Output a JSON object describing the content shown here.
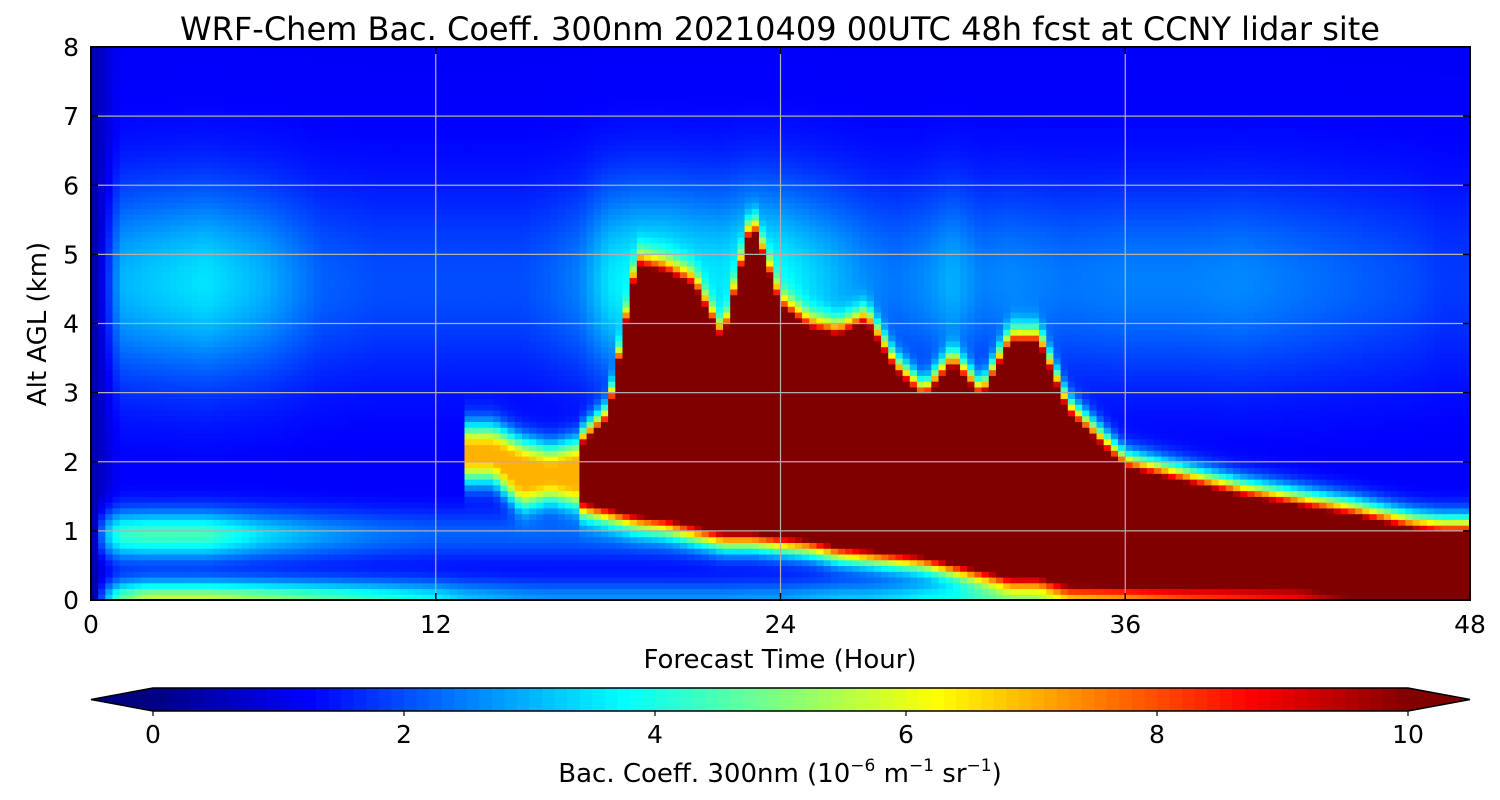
{
  "chart_data": {
    "type": "heatmap",
    "title": "WRF-Chem Bac. Coeff. 300nm  20210409 00UTC 48h fcst at CCNY lidar site",
    "xlabel": "Forecast Time (Hour)",
    "ylabel": "Alt AGL (km)",
    "xlim": [
      0,
      48
    ],
    "ylim": [
      0,
      8
    ],
    "xticks": [
      0,
      12,
      24,
      36,
      48
    ],
    "yticks": [
      0,
      1,
      2,
      3,
      4,
      5,
      6,
      7,
      8
    ],
    "grid": true,
    "colormap": "jet",
    "colorbar": {
      "label_main": "Bac. Coeff. 300nm  (10",
      "label_exp1": "−6",
      "label_mid": " m",
      "label_exp2": "−1",
      "label_mid2": " sr",
      "label_exp3": "−1",
      "label_end": ")",
      "range": [
        0,
        10
      ],
      "ticks": [
        0,
        2,
        4,
        6,
        8,
        10
      ],
      "extend": "both",
      "orientation": "horizontal",
      "placement": "bottom"
    },
    "x": [
      0,
      0.5,
      1,
      2,
      4,
      6,
      8,
      10,
      12,
      13,
      14,
      15,
      16,
      17,
      18,
      19,
      20,
      21,
      22,
      23,
      24,
      25,
      26,
      27,
      28,
      29,
      30,
      31,
      32,
      33,
      34,
      36,
      38,
      40,
      42,
      44,
      46,
      47,
      48
    ],
    "layers": [
      {
        "name": "surface_aerosol",
        "z0": 0.0,
        "z1": 0.5,
        "values": [
          0.2,
          3.0,
          4.5,
          5.5,
          5.5,
          5.0,
          4.5,
          4.0,
          3.5,
          3.0,
          2.8,
          2.6,
          2.5,
          2.5,
          2.5,
          2.5,
          2.5,
          2.5,
          2.5,
          2.6,
          2.6,
          2.8,
          3.0,
          3.0,
          3.2,
          3.5,
          3.6,
          3.8,
          3.9,
          4.0,
          4.3,
          5.0,
          6.0,
          6.5,
          7.0,
          8.0,
          9.0,
          10.0,
          10.0
        ]
      },
      {
        "name": "early_low_layer",
        "z0": 0.4,
        "z1": 1.3,
        "values": [
          0.5,
          3.2,
          4.0,
          4.2,
          4.2,
          3.2,
          2.6,
          2.2,
          2.0,
          2.0,
          2.0,
          2.0,
          2.0,
          2.0,
          2.0,
          2.0,
          2.0,
          2.0,
          2.0,
          2.0,
          2.0,
          2.0,
          2.0,
          2.0,
          2.0,
          2.0,
          2.0,
          2.0,
          2.0,
          2.0,
          2.0,
          2.0,
          2.0,
          2.0,
          2.0,
          2.0,
          2.0,
          2.0,
          2.0
        ]
      },
      {
        "name": "plume_bottom_km",
        "values": [
          null,
          null,
          null,
          null,
          null,
          null,
          null,
          null,
          null,
          null,
          2.05,
          1.65,
          1.75,
          1.65,
          1.55,
          1.45,
          1.4,
          1.3,
          1.2,
          1.2,
          1.15,
          1.1,
          1.0,
          0.95,
          0.9,
          0.85,
          0.75,
          0.65,
          0.55,
          0.55,
          0.45,
          0.45,
          0.45,
          0.45,
          0.45,
          0.4,
          0.35,
          0.3,
          0.3
        ]
      },
      {
        "name": "plume_top_km",
        "values": [
          null,
          null,
          null,
          null,
          null,
          null,
          null,
          null,
          null,
          null,
          2.2,
          2.0,
          1.9,
          2.0,
          2.4,
          4.6,
          4.5,
          4.3,
          3.5,
          5.2,
          4.0,
          3.7,
          3.6,
          3.8,
          3.1,
          2.7,
          3.2,
          2.7,
          3.5,
          3.5,
          2.5,
          1.7,
          1.5,
          1.3,
          1.15,
          1.0,
          0.8,
          0.75,
          0.75
        ]
      },
      {
        "name": "upper_aerosol",
        "z0": 3.0,
        "z1": 6.2,
        "values": [
          0.5,
          2.5,
          3.0,
          3.2,
          3.5,
          3.0,
          2.2,
          2.0,
          2.0,
          2.0,
          2.0,
          2.0,
          2.2,
          2.5,
          3.5,
          3.8,
          3.8,
          3.6,
          3.5,
          4.0,
          3.8,
          3.4,
          3.0,
          2.6,
          2.4,
          2.6,
          3.0,
          2.5,
          2.6,
          2.5,
          2.4,
          2.5,
          2.5,
          2.6,
          2.4,
          2.2,
          2.0,
          1.8,
          1.8
        ]
      }
    ]
  }
}
